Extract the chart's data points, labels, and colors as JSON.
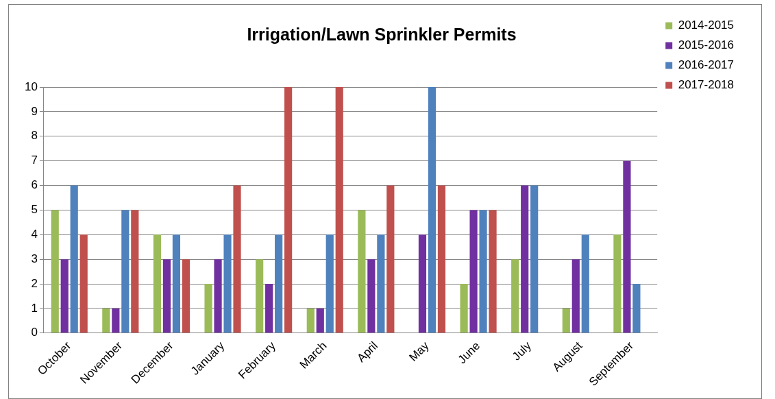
{
  "chart_data": {
    "type": "bar",
    "title": "Irrigation/Lawn Sprinkler Permits",
    "categories": [
      "October",
      "November",
      "December",
      "January",
      "February",
      "March",
      "April",
      "May",
      "June",
      "July",
      "August",
      "September"
    ],
    "series": [
      {
        "name": "2014-2015",
        "color": "#9bbb59",
        "values": [
          5,
          1,
          4,
          2,
          3,
          1,
          5,
          null,
          2,
          3,
          1,
          4
        ]
      },
      {
        "name": "2015-2016",
        "color": "#7030a0",
        "values": [
          3,
          1,
          3,
          3,
          2,
          1,
          3,
          4,
          5,
          6,
          3,
          7
        ]
      },
      {
        "name": "2016-2017",
        "color": "#4f81bd",
        "values": [
          6,
          5,
          4,
          4,
          4,
          4,
          4,
          10,
          5,
          6,
          4,
          2
        ]
      },
      {
        "name": "2017-2018",
        "color": "#c0504d",
        "values": [
          4,
          5,
          3,
          6,
          10,
          10,
          6,
          6,
          5,
          null,
          null,
          null
        ]
      }
    ],
    "ylim": [
      0,
      10
    ],
    "yticks": [
      0,
      1,
      2,
      3,
      4,
      5,
      6,
      7,
      8,
      9,
      10
    ],
    "grid": "y",
    "legend": "right"
  }
}
